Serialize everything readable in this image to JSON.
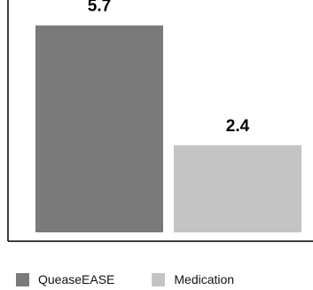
{
  "chart_data": {
    "type": "bar",
    "categories": [
      "QueaseEASE",
      "Medication"
    ],
    "values": [
      5.7,
      2.4
    ],
    "data_labels": [
      "5.7",
      "2.4"
    ],
    "colors": [
      "#7a7a7a",
      "#c4c4c4"
    ],
    "ylim": [
      0,
      6.4
    ],
    "grid": false,
    "legend_position": "bottom-left",
    "title": "",
    "xlabel": "",
    "ylabel": ""
  },
  "legend": {
    "items": [
      {
        "label": "QueaseEASE",
        "color": "#7a7a7a"
      },
      {
        "label": "Medication",
        "color": "#c4c4c4"
      }
    ]
  }
}
